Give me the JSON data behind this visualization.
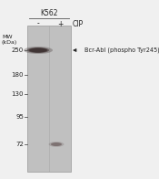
{
  "cell_line": "K562",
  "lanes": [
    "-",
    "+"
  ],
  "cip_label": "CIP",
  "mw_label": "MW\n(kDa)",
  "mw_markers": [
    250,
    180,
    130,
    95,
    72
  ],
  "annotation": "Bcr-Abl (phospho Tyr245)",
  "gel_bg_color": "#c0c0c0",
  "band1_color": "#3a2e2e",
  "band2_color": "#4a3535",
  "bg_color": "#f0f0f0",
  "text_color": "#222222",
  "font_size": 5.5
}
